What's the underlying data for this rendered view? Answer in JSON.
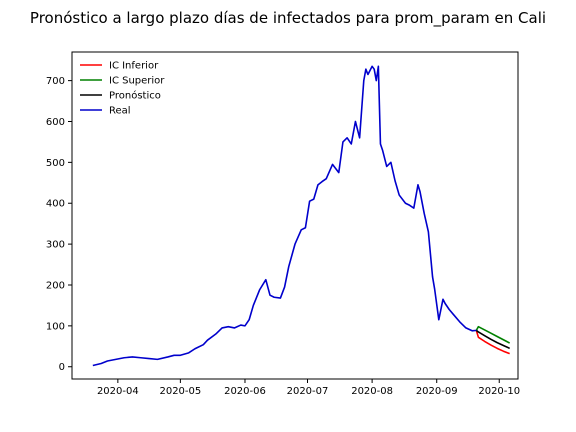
{
  "chart_data": {
    "type": "line",
    "title": "Pronóstico a largo plazo días de infectados para prom_param en Cali",
    "xlabel": "",
    "ylabel": "",
    "x_range": [
      "2020-03-10",
      "2020-10-10"
    ],
    "ylim": [
      -30,
      770
    ],
    "x_ticks": [
      "2020-04",
      "2020-05",
      "2020-06",
      "2020-07",
      "2020-08",
      "2020-09",
      "2020-10"
    ],
    "y_ticks": [
      0,
      100,
      200,
      300,
      400,
      500,
      600,
      700
    ],
    "grid": false,
    "legend_position": "top-left",
    "series": [
      {
        "name": "IC Inferior",
        "color": "#ff0000",
        "x": [
          "2020-09-20",
          "2020-09-21",
          "2020-09-24",
          "2020-09-27",
          "2020-09-30",
          "2020-10-03",
          "2020-10-06"
        ],
        "y": [
          89,
          72,
          62,
          53,
          45,
          38,
          32
        ]
      },
      {
        "name": "IC Superior",
        "color": "#008000",
        "x": [
          "2020-09-20",
          "2020-09-21",
          "2020-09-24",
          "2020-09-27",
          "2020-09-30",
          "2020-10-03",
          "2020-10-06"
        ],
        "y": [
          89,
          98,
          90,
          82,
          74,
          66,
          58
        ]
      },
      {
        "name": "Pronóstico",
        "color": "#000000",
        "x": [
          "2020-09-20",
          "2020-09-21",
          "2020-09-24",
          "2020-09-27",
          "2020-09-30",
          "2020-10-03",
          "2020-10-06"
        ],
        "y": [
          89,
          85,
          76,
          67,
          59,
          52,
          45
        ]
      },
      {
        "name": "Real",
        "color": "#0000cc",
        "x": [
          "2020-03-20",
          "2020-03-24",
          "2020-03-27",
          "2020-03-31",
          "2020-04-04",
          "2020-04-08",
          "2020-04-12",
          "2020-04-16",
          "2020-04-20",
          "2020-04-25",
          "2020-04-28",
          "2020-05-01",
          "2020-05-05",
          "2020-05-08",
          "2020-05-12",
          "2020-05-14",
          "2020-05-18",
          "2020-05-21",
          "2020-05-24",
          "2020-05-27",
          "2020-05-30",
          "2020-06-01",
          "2020-06-03",
          "2020-06-05",
          "2020-06-08",
          "2020-06-11",
          "2020-06-13",
          "2020-06-15",
          "2020-06-18",
          "2020-06-20",
          "2020-06-22",
          "2020-06-25",
          "2020-06-28",
          "2020-06-30",
          "2020-07-02",
          "2020-07-04",
          "2020-07-06",
          "2020-07-08",
          "2020-07-10",
          "2020-07-13",
          "2020-07-16",
          "2020-07-18",
          "2020-07-20",
          "2020-07-22",
          "2020-07-24",
          "2020-07-26",
          "2020-07-28",
          "2020-07-29",
          "2020-07-30",
          "2020-08-01",
          "2020-08-02",
          "2020-08-03",
          "2020-08-04",
          "2020-08-05",
          "2020-08-06",
          "2020-08-08",
          "2020-08-10",
          "2020-08-12",
          "2020-08-14",
          "2020-08-17",
          "2020-08-19",
          "2020-08-21",
          "2020-08-23",
          "2020-08-24",
          "2020-08-26",
          "2020-08-28",
          "2020-08-30",
          "2020-08-31",
          "2020-09-02",
          "2020-09-04",
          "2020-09-05",
          "2020-09-07",
          "2020-09-09",
          "2020-09-12",
          "2020-09-15",
          "2020-09-18",
          "2020-09-20"
        ],
        "y": [
          3,
          8,
          14,
          18,
          22,
          24,
          22,
          20,
          18,
          24,
          28,
          28,
          34,
          44,
          54,
          65,
          80,
          95,
          98,
          95,
          102,
          100,
          115,
          150,
          188,
          213,
          175,
          170,
          168,
          195,
          245,
          300,
          335,
          340,
          405,
          410,
          445,
          453,
          460,
          495,
          475,
          550,
          560,
          545,
          600,
          560,
          700,
          728,
          715,
          735,
          728,
          700,
          735,
          545,
          530,
          490,
          500,
          455,
          420,
          400,
          395,
          388,
          445,
          428,
          375,
          330,
          220,
          190,
          115,
          165,
          155,
          140,
          128,
          110,
          95,
          88,
          89
        ]
      }
    ]
  }
}
